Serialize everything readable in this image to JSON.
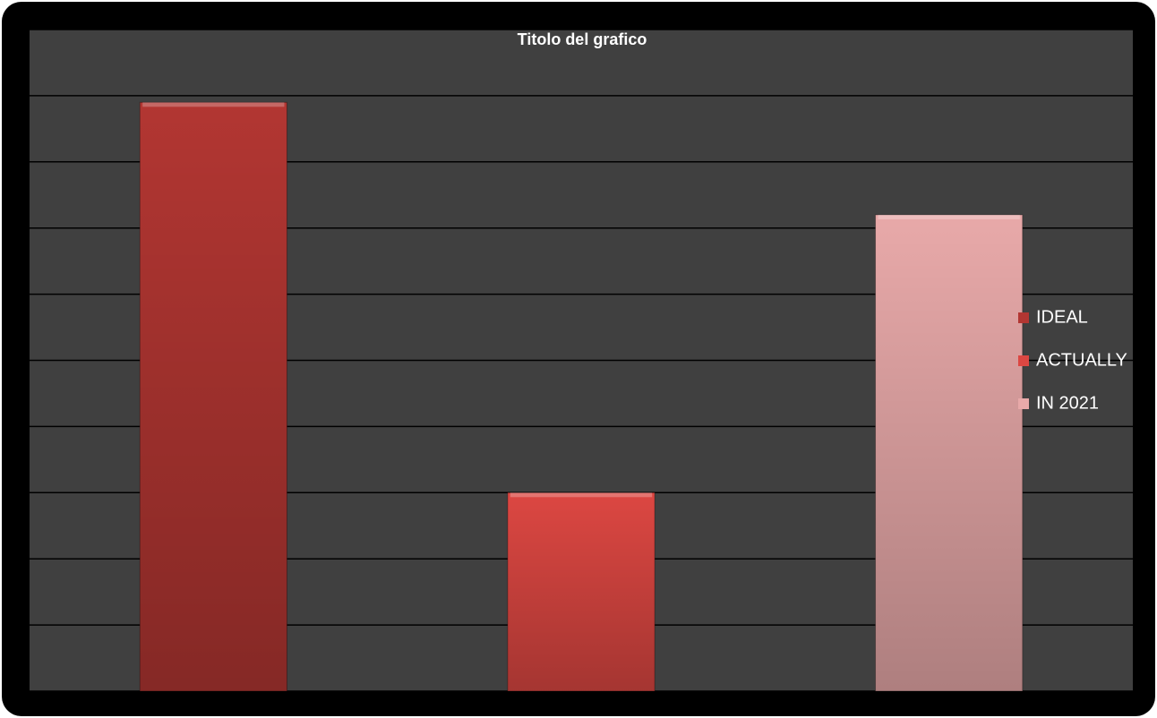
{
  "chart_data": {
    "type": "bar",
    "title": "Titolo del grafico",
    "categories": [
      null,
      null,
      null
    ],
    "series": [
      {
        "name": "IDEAL",
        "color": "#b23632",
        "values": [
          8.9,
          null,
          null
        ]
      },
      {
        "name": "ACTUALLY",
        "color": "#dc4742",
        "values": [
          null,
          3,
          null
        ]
      },
      {
        "name": "IN 2021",
        "color": "#e8a9a9",
        "values": [
          null,
          null,
          7.2
        ]
      }
    ],
    "ylim": [
      0,
      10
    ],
    "yticks": [
      0,
      1,
      2,
      3,
      4,
      5,
      6,
      7,
      8,
      9,
      10
    ],
    "grid": true,
    "legend": "right"
  }
}
